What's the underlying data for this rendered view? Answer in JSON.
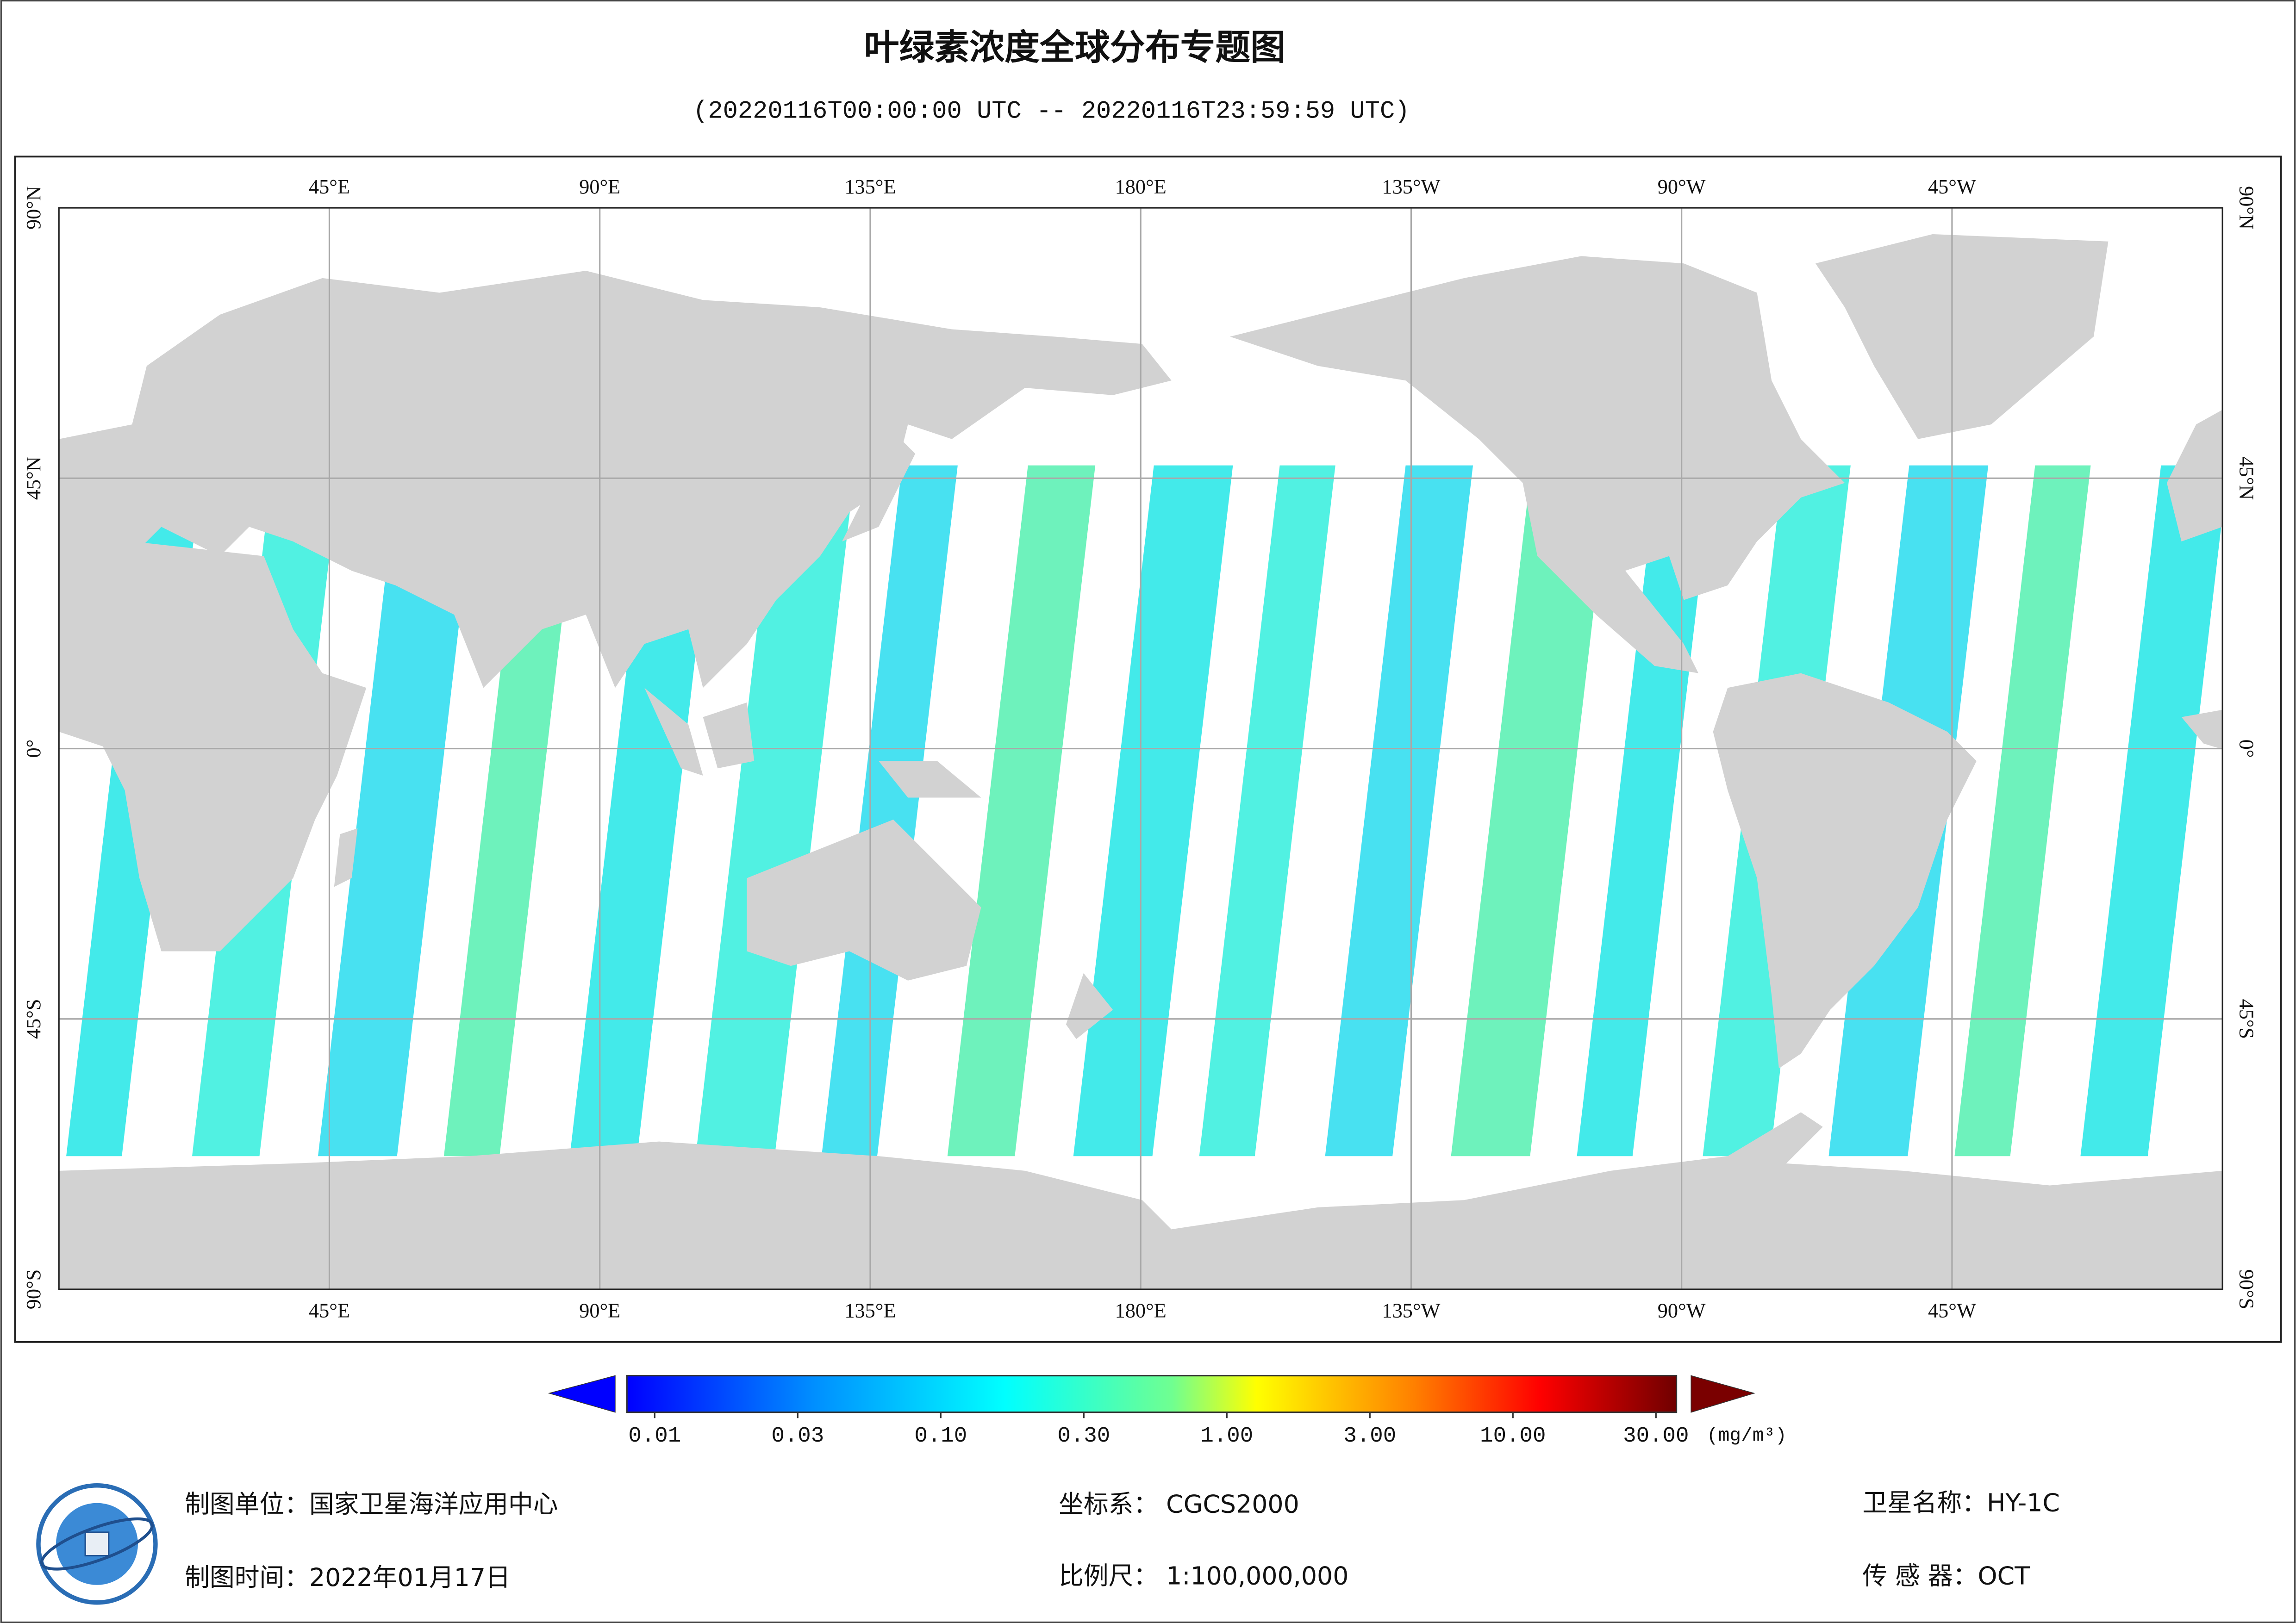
{
  "map": {
    "title": "叶绿素浓度全球分布专题图",
    "subtitle": "(20220116T00:00:00 UTC -- 20220116T23:59:59 UTC)",
    "longitude_ticks": [
      {
        "value": 45,
        "label": "45°E"
      },
      {
        "value": 90,
        "label": "90°E"
      },
      {
        "value": 135,
        "label": "135°E"
      },
      {
        "value": 180,
        "label": "180°E"
      },
      {
        "value": -135,
        "label": "135°W"
      },
      {
        "value": -90,
        "label": "90°W"
      },
      {
        "value": -45,
        "label": "45°W"
      }
    ],
    "latitude_ticks": [
      {
        "value": 90,
        "label": "90°N"
      },
      {
        "value": 45,
        "label": "45°N"
      },
      {
        "value": 0,
        "label": "0°"
      },
      {
        "value": -45,
        "label": "45°S"
      },
      {
        "value": -90,
        "label": "90°S"
      }
    ],
    "colorbar": {
      "ticks": [
        {
          "value": 0.01,
          "label": "0.01"
        },
        {
          "value": 0.03,
          "label": "0.03"
        },
        {
          "value": 0.1,
          "label": "0.10"
        },
        {
          "value": 0.3,
          "label": "0.30"
        },
        {
          "value": 1,
          "label": "1.00"
        },
        {
          "value": 3,
          "label": "3.00"
        },
        {
          "value": 10,
          "label": "10.00"
        },
        {
          "value": 30,
          "label": "30.00"
        }
      ],
      "unit": "(mg/m³)"
    },
    "footer": {
      "producer": "制图单位：国家卫星海洋应用中心",
      "date": "制图时间：2022年01月17日",
      "crs": "坐标系：  CGCS2000",
      "scale": "比例尺：  1:100,000,000",
      "satellite": "卫星名称：HY-1C",
      "sensor": "传 感 器：OCT"
    }
  }
}
